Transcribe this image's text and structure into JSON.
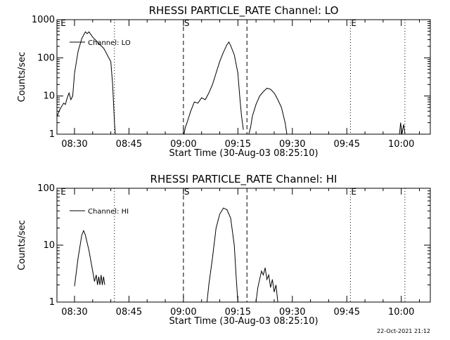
{
  "footer": {
    "timestamp": "22-Oct-2021 21:12"
  },
  "chart_data": [
    {
      "type": "line",
      "title": "RHESSI PARTICLE_RATE Channel: LO",
      "xlabel": "Start Time (30-Aug-03 08:25:10)",
      "ylabel": "Counts/sec",
      "y_scale": "log",
      "ylim": [
        1,
        1000
      ],
      "y_ticks": [
        {
          "value": 1,
          "label": "1"
        },
        {
          "value": 10,
          "label": "10"
        },
        {
          "value": 100,
          "label": "100"
        },
        {
          "value": 1000,
          "label": "1000"
        }
      ],
      "x_range": [
        "08:25:10",
        "10:08:00"
      ],
      "x_ticks": [
        "08:30",
        "08:45",
        "09:00",
        "09:15",
        "09:30",
        "09:45",
        "10:00"
      ],
      "legend": {
        "label": "Channel: LO",
        "placement": "top-left"
      },
      "markers": [
        {
          "time": "08:26:00",
          "label": "E",
          "style": "none"
        },
        {
          "time": "08:41:00",
          "label": "",
          "style": "dotted"
        },
        {
          "time": "09:00:00",
          "label": "S",
          "style": "dashed"
        },
        {
          "time": "09:17:30",
          "label": "",
          "style": "dashed"
        },
        {
          "time": "09:46:00",
          "label": "E",
          "style": "dotted"
        },
        {
          "time": "10:01:00",
          "label": "",
          "style": "dotted"
        }
      ],
      "series": [
        {
          "name": "Channel: LO",
          "segments": [
            [
              [
                "08:25:15",
                3.0
              ],
              [
                "08:26:00",
                4.5
              ],
              [
                "08:27:00",
                6.5
              ],
              [
                "08:27:30",
                6.0
              ],
              [
                "08:28:00",
                9
              ],
              [
                "08:28:30",
                12
              ],
              [
                "08:29:00",
                8
              ],
              [
                "08:29:30",
                10
              ],
              [
                "08:30:00",
                40
              ],
              [
                "08:31:00",
                150
              ],
              [
                "08:32:00",
                320
              ],
              [
                "08:33:00",
                480
              ],
              [
                "08:33:30",
                430
              ],
              [
                "08:34:00",
                480
              ],
              [
                "08:35:00",
                350
              ],
              [
                "08:36:00",
                280
              ],
              [
                "08:37:00",
                220
              ],
              [
                "08:38:00",
                180
              ],
              [
                "08:38:30",
                150
              ],
              [
                "08:39:00",
                120
              ],
              [
                "08:40:00",
                80
              ],
              [
                "08:40:30",
                20
              ],
              [
                "08:41:00",
                2
              ],
              [
                "08:41:15",
                1
              ]
            ],
            [
              [
                "09:00:10",
                1
              ],
              [
                "09:00:30",
                1.5
              ],
              [
                "09:01:00",
                2
              ],
              [
                "09:02:00",
                4
              ],
              [
                "09:03:00",
                7
              ],
              [
                "09:04:00",
                6.5
              ],
              [
                "09:05:00",
                9
              ],
              [
                "09:06:00",
                8
              ],
              [
                "09:07:00",
                12
              ],
              [
                "09:08:00",
                20
              ],
              [
                "09:09:00",
                40
              ],
              [
                "09:10:00",
                80
              ],
              [
                "09:11:00",
                140
              ],
              [
                "09:12:00",
                220
              ],
              [
                "09:12:30",
                260
              ],
              [
                "09:13:00",
                210
              ],
              [
                "09:14:00",
                120
              ],
              [
                "09:15:00",
                40
              ],
              [
                "09:15:30",
                10
              ],
              [
                "09:16:00",
                3
              ],
              [
                "09:16:30",
                1.3
              ]
            ],
            [
              [
                "09:18:00",
                1
              ],
              [
                "09:18:30",
                1.5
              ],
              [
                "09:19:00",
                3
              ],
              [
                "09:20:00",
                6
              ],
              [
                "09:21:00",
                10
              ],
              [
                "09:22:00",
                13
              ],
              [
                "09:23:00",
                16
              ],
              [
                "09:24:00",
                15
              ],
              [
                "09:25:00",
                12
              ],
              [
                "09:26:00",
                8
              ],
              [
                "09:27:00",
                5
              ],
              [
                "09:28:00",
                2
              ],
              [
                "09:28:30",
                1
              ]
            ],
            [
              [
                "09:59:30",
                1
              ],
              [
                "09:59:50",
                2
              ],
              [
                "10:00:10",
                1
              ],
              [
                "10:00:40",
                1.8
              ],
              [
                "10:01:00",
                1
              ]
            ]
          ]
        }
      ]
    },
    {
      "type": "line",
      "title": "RHESSI PARTICLE_RATE Channel: HI",
      "xlabel": "Start Time (30-Aug-03 08:25:10)",
      "ylabel": "Counts/sec",
      "y_scale": "log",
      "ylim": [
        1,
        100
      ],
      "y_ticks": [
        {
          "value": 1,
          "label": "1"
        },
        {
          "value": 10,
          "label": "10"
        },
        {
          "value": 100,
          "label": "100"
        }
      ],
      "x_range": [
        "08:25:10",
        "10:08:00"
      ],
      "x_ticks": [
        "08:30",
        "08:45",
        "09:00",
        "09:15",
        "09:30",
        "09:45",
        "10:00"
      ],
      "legend": {
        "label": "Channel: HI",
        "placement": "top-left"
      },
      "markers": [
        {
          "time": "08:26:00",
          "label": "E",
          "style": "none"
        },
        {
          "time": "08:41:00",
          "label": "",
          "style": "dotted"
        },
        {
          "time": "09:00:00",
          "label": "S",
          "style": "dashed"
        },
        {
          "time": "09:17:30",
          "label": "",
          "style": "dashed"
        },
        {
          "time": "09:46:00",
          "label": "E",
          "style": "dotted"
        },
        {
          "time": "10:01:00",
          "label": "",
          "style": "dotted"
        }
      ],
      "series": [
        {
          "name": "Channel: HI",
          "segments": [
            [
              [
                "08:30:00",
                1.9
              ],
              [
                "08:31:00",
                6
              ],
              [
                "08:32:00",
                15
              ],
              [
                "08:32:30",
                18
              ],
              [
                "08:33:00",
                15
              ],
              [
                "08:34:00",
                8
              ],
              [
                "08:35:00",
                3.5
              ],
              [
                "08:35:30",
                2.3
              ],
              [
                "08:36:00",
                3
              ],
              [
                "08:36:20",
                2
              ],
              [
                "08:36:40",
                2.8
              ],
              [
                "08:37:00",
                2
              ],
              [
                "08:37:20",
                3
              ],
              [
                "08:37:40",
                2
              ],
              [
                "08:38:00",
                2.8
              ],
              [
                "08:38:20",
                2
              ]
            ],
            [
              [
                "09:06:30",
                1
              ],
              [
                "09:07:00",
                2
              ],
              [
                "09:08:00",
                6
              ],
              [
                "09:09:00",
                20
              ],
              [
                "09:10:00",
                35
              ],
              [
                "09:11:00",
                45
              ],
              [
                "09:12:00",
                42
              ],
              [
                "09:13:00",
                30
              ],
              [
                "09:14:00",
                10
              ],
              [
                "09:14:30",
                3
              ],
              [
                "09:15:00",
                1
              ]
            ],
            [
              [
                "09:20:00",
                1
              ],
              [
                "09:20:30",
                1.8
              ],
              [
                "09:21:00",
                2.5
              ],
              [
                "09:21:30",
                3.5
              ],
              [
                "09:22:00",
                3
              ],
              [
                "09:22:30",
                4
              ],
              [
                "09:23:00",
                2.5
              ],
              [
                "09:23:30",
                3
              ],
              [
                "09:24:00",
                1.8
              ],
              [
                "09:24:30",
                2.5
              ],
              [
                "09:25:00",
                1.5
              ],
              [
                "09:25:30",
                2
              ],
              [
                "09:26:00",
                1
              ]
            ]
          ]
        }
      ]
    }
  ]
}
